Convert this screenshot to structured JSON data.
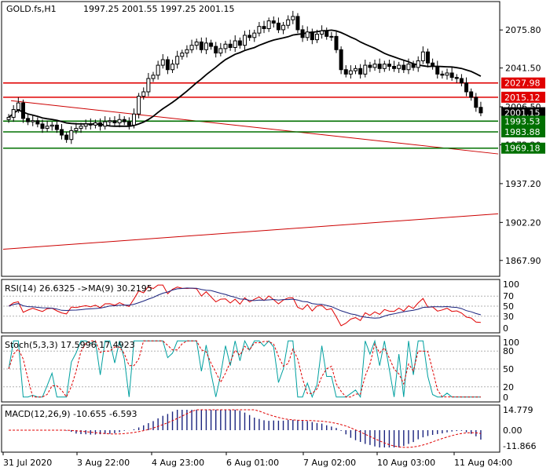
{
  "header": {
    "symbol": "GOLD.fs,H1",
    "ohlc": "1997.25 2001.55 1997.25 2001.15"
  },
  "colors": {
    "bull": "#000000",
    "bear": "#000000",
    "ma": "#000000",
    "resistance": "#e00000",
    "support": "#007000",
    "trendline": "#cc0000",
    "rsi": "#e00000",
    "rsi_ma": "#1a237e",
    "stoch_main": "#00a0a0",
    "stoch_signal": "#e00000",
    "macd_hist": "#1a237e",
    "macd_signal": "#e00000",
    "level_dash": "#b0b0b0",
    "current_price_bg": "#000000"
  },
  "price_axis": {
    "ticks": [
      "2075.80",
      "2041.50",
      "2006.50",
      "1972.20",
      "1937.20",
      "1902.20",
      "1867.90"
    ]
  },
  "price_labels": [
    {
      "text": "2027.98",
      "kind": "resistance"
    },
    {
      "text": "2015.12",
      "kind": "resistance"
    },
    {
      "text": "2001.15",
      "kind": "current"
    },
    {
      "text": "1993.53",
      "kind": "support"
    },
    {
      "text": "1983.88",
      "kind": "support"
    },
    {
      "text": "1969.18",
      "kind": "support"
    }
  ],
  "rsi_panel": {
    "title": "RSI(14) 26.6325  ->MA(9) 30.2195",
    "ticks": [
      "100",
      "70",
      "50",
      "30",
      "0"
    ]
  },
  "stoch_panel": {
    "title": "Stoch(5,3,3) 17.5996 17.4923",
    "ticks": [
      "100",
      "80",
      "50",
      "20",
      "0"
    ]
  },
  "macd_panel": {
    "title": "MACD(12,26,9) -10.655 -6.593",
    "ticks": [
      "14.779",
      "0.00",
      "-11.866"
    ]
  },
  "time_axis": {
    "labels": [
      "31 Jul 2020",
      "3 Aug 22:00",
      "4 Aug 23:00",
      "6 Aug 01:00",
      "7 Aug 02:00",
      "10 Aug 03:00",
      "11 Aug 04:00"
    ]
  },
  "chart_data": {
    "type": "candlestick",
    "title": "GOLD.fs,H1",
    "main_price_range": [
      1855,
      2100
    ],
    "close_series": [
      1997,
      2004,
      2010,
      1996,
      1993,
      1994,
      1991,
      1987,
      1989,
      1990,
      1986,
      1981,
      1977,
      1985,
      1987,
      1989,
      1991,
      1990,
      1992,
      1989,
      1993,
      1994,
      1992,
      1995,
      1993,
      1990,
      2000,
      2016,
      2020,
      2032,
      2035,
      2044,
      2049,
      2040,
      2045,
      2052,
      2055,
      2058,
      2062,
      2065,
      2058,
      2064,
      2061,
      2055,
      2059,
      2063,
      2060,
      2066,
      2062,
      2071,
      2069,
      2073,
      2079,
      2077,
      2084,
      2082,
      2076,
      2080,
      2085,
      2088,
      2076,
      2069,
      2074,
      2067,
      2072,
      2075,
      2070,
      2070,
      2058,
      2040,
      2036,
      2039,
      2041,
      2036,
      2044,
      2042,
      2045,
      2041,
      2045,
      2043,
      2041,
      2044,
      2040,
      2045,
      2042,
      2048,
      2056,
      2046,
      2043,
      2036,
      2035,
      2037,
      2033,
      2032,
      2028,
      2020,
      2015,
      2006,
      2001
    ],
    "moving_average": {
      "start": 1983,
      "end": 2038,
      "peak": 2061
    },
    "horizontal_levels": [
      2027.98,
      2015.12,
      1993.53,
      1983.88,
      1969.18
    ],
    "rsi": {
      "value": 26.6325,
      "ma": 30.2195
    },
    "stochastic": {
      "k": 17.5996,
      "d": 17.4923
    },
    "macd": {
      "main": -10.655,
      "signal": -6.593
    }
  }
}
